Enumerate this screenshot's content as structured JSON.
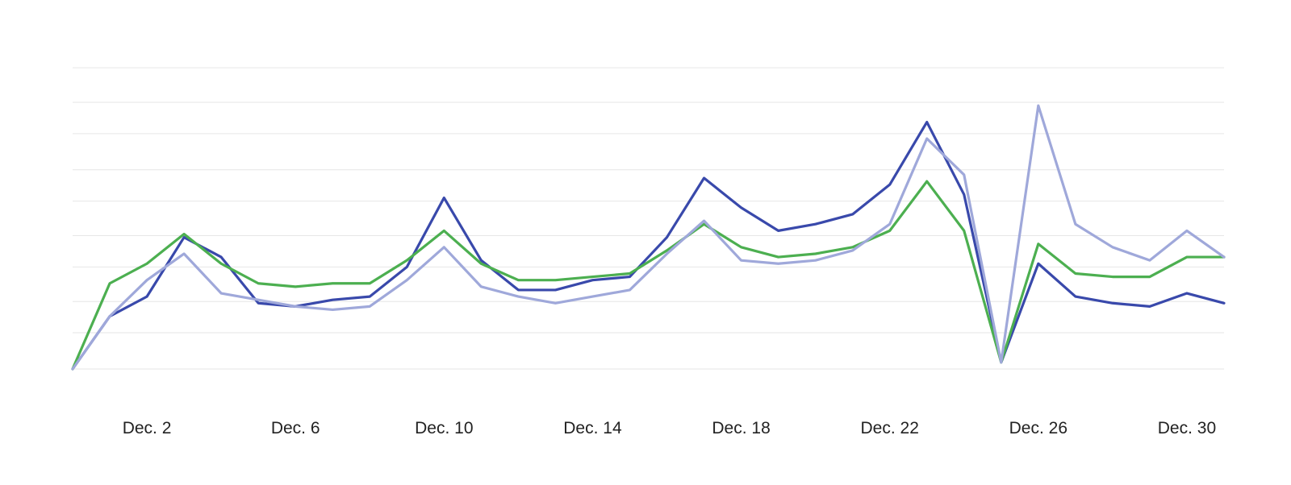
{
  "chart_data": {
    "type": "line",
    "x": [
      1,
      2,
      3,
      4,
      5,
      6,
      7,
      8,
      9,
      10,
      11,
      12,
      13,
      14,
      15,
      16,
      17,
      18,
      19,
      20,
      21,
      22,
      23,
      24,
      25,
      26,
      27,
      28,
      29,
      30,
      31,
      32
    ],
    "xticks": [
      {
        "x": 3,
        "label": "Dec. 2"
      },
      {
        "x": 7,
        "label": "Dec. 6"
      },
      {
        "x": 11,
        "label": "Dec. 10"
      },
      {
        "x": 15,
        "label": "Dec. 14"
      },
      {
        "x": 19,
        "label": "Dec. 18"
      },
      {
        "x": 23,
        "label": "Dec. 22"
      },
      {
        "x": 27,
        "label": "Dec. 26"
      },
      {
        "x": 31,
        "label": "Dec. 30"
      }
    ],
    "xlim": [
      1,
      32
    ],
    "ylim": [
      0,
      9.3
    ],
    "grid": true,
    "ygrid": [
      0,
      1.1,
      2.05,
      3.1,
      4.05,
      5.1,
      6.05,
      7.15,
      8.1,
      9.15
    ],
    "series": [
      {
        "color": "#3949ab",
        "values": [
          0,
          1.6,
          2.2,
          4.0,
          3.4,
          2.0,
          1.9,
          2.1,
          2.2,
          3.1,
          5.2,
          3.3,
          2.4,
          2.4,
          2.7,
          2.8,
          4.0,
          5.8,
          4.9,
          4.2,
          4.4,
          4.7,
          5.6,
          7.5,
          5.3,
          0.2,
          3.2,
          2.2,
          2.0,
          1.9,
          2.3,
          2.0
        ]
      },
      {
        "color": "#4caf50",
        "values": [
          0,
          2.6,
          3.2,
          4.1,
          3.2,
          2.6,
          2.5,
          2.6,
          2.6,
          3.3,
          4.2,
          3.2,
          2.7,
          2.7,
          2.8,
          2.9,
          3.6,
          4.4,
          3.7,
          3.4,
          3.5,
          3.7,
          4.2,
          5.7,
          4.2,
          0.2,
          3.8,
          2.9,
          2.8,
          2.8,
          3.4,
          3.4
        ]
      },
      {
        "color": "#9fa8da",
        "values": [
          0,
          1.6,
          2.7,
          3.5,
          2.3,
          2.1,
          1.9,
          1.8,
          1.9,
          2.7,
          3.7,
          2.5,
          2.2,
          2.0,
          2.2,
          2.4,
          3.5,
          4.5,
          3.3,
          3.2,
          3.3,
          3.6,
          4.4,
          7.0,
          5.9,
          0.2,
          8.0,
          4.4,
          3.7,
          3.3,
          4.2,
          3.4
        ]
      }
    ]
  }
}
